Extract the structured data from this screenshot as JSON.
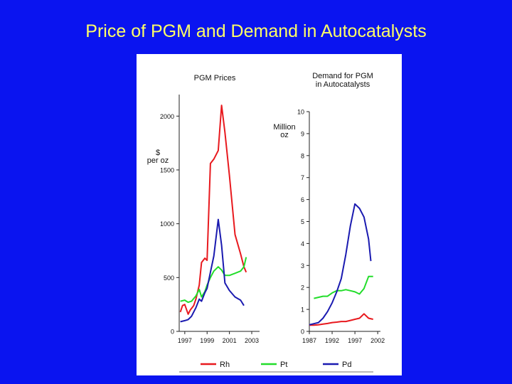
{
  "slide": {
    "title": "Price of PGM and Demand in Autocatalysts"
  },
  "colors": {
    "background": "#0a14f0",
    "title": "#ffff66",
    "rh": "#e8191e",
    "pt": "#22dd2a",
    "pd": "#1a1ab0"
  },
  "legend": [
    {
      "key": "rh",
      "label": "Rh",
      "color": "#e8191e"
    },
    {
      "key": "pt",
      "label": "Pt",
      "color": "#22dd2a"
    },
    {
      "key": "pd",
      "label": "Pd",
      "color": "#1a1ab0"
    }
  ],
  "chart_data": [
    {
      "type": "line",
      "title": "PGM Prices",
      "ylabel": "$ per oz",
      "xlim": [
        1996.5,
        2003.7
      ],
      "ylim": [
        0,
        2200
      ],
      "xticks": [
        1997,
        1999,
        2001,
        2003
      ],
      "xtick_labels": [
        "1997",
        "1999",
        "2001",
        "2003"
      ],
      "yticks": [
        0,
        500,
        1000,
        1500,
        2000
      ],
      "ytick_labels": [
        "0",
        "500",
        "1000",
        "1500",
        "2000"
      ],
      "series": [
        {
          "name": "Rh",
          "color": "#e8191e",
          "points": [
            [
              1996.6,
              180
            ],
            [
              1996.8,
              240
            ],
            [
              1997.0,
              250
            ],
            [
              1997.3,
              160
            ],
            [
              1997.5,
              200
            ],
            [
              1997.8,
              240
            ],
            [
              1998.0,
              300
            ],
            [
              1998.3,
              430
            ],
            [
              1998.5,
              640
            ],
            [
              1998.8,
              680
            ],
            [
              1999.0,
              660
            ],
            [
              1999.3,
              1560
            ],
            [
              1999.6,
              1600
            ],
            [
              2000.0,
              1680
            ],
            [
              2000.3,
              2100
            ],
            [
              2000.6,
              1850
            ],
            [
              2001.0,
              1450
            ],
            [
              2001.5,
              900
            ],
            [
              2002.0,
              720
            ],
            [
              2002.3,
              600
            ],
            [
              2002.5,
              550
            ]
          ]
        },
        {
          "name": "Pt",
          "color": "#22dd2a",
          "points": [
            [
              1996.6,
              280
            ],
            [
              1997.0,
              290
            ],
            [
              1997.3,
              270
            ],
            [
              1997.6,
              280
            ],
            [
              1998.0,
              330
            ],
            [
              1998.3,
              390
            ],
            [
              1998.5,
              320
            ],
            [
              1998.8,
              370
            ],
            [
              1999.0,
              430
            ],
            [
              1999.3,
              500
            ],
            [
              1999.6,
              560
            ],
            [
              2000.0,
              600
            ],
            [
              2000.3,
              570
            ],
            [
              2000.6,
              520
            ],
            [
              2001.0,
              520
            ],
            [
              2001.5,
              540
            ],
            [
              2002.0,
              560
            ],
            [
              2002.3,
              600
            ],
            [
              2002.5,
              690
            ]
          ]
        },
        {
          "name": "Pd",
          "color": "#1a1ab0",
          "points": [
            [
              1996.6,
              90
            ],
            [
              1997.0,
              100
            ],
            [
              1997.3,
              110
            ],
            [
              1997.6,
              140
            ],
            [
              1998.0,
              220
            ],
            [
              1998.3,
              300
            ],
            [
              1998.5,
              280
            ],
            [
              1998.8,
              360
            ],
            [
              1999.0,
              400
            ],
            [
              1999.3,
              550
            ],
            [
              1999.6,
              700
            ],
            [
              2000.0,
              1040
            ],
            [
              2000.3,
              800
            ],
            [
              2000.6,
              450
            ],
            [
              2001.0,
              380
            ],
            [
              2001.5,
              320
            ],
            [
              2002.0,
              290
            ],
            [
              2002.3,
              240
            ]
          ]
        }
      ]
    },
    {
      "type": "line",
      "title": "Demand for PGM in Autocatalysts",
      "ylabel": "Million oz",
      "xlim": [
        1987,
        2002.6
      ],
      "ylim": [
        0,
        10
      ],
      "xticks": [
        1987,
        1992,
        1997,
        2002
      ],
      "xtick_labels": [
        "1987",
        "1992",
        "1997",
        "2002"
      ],
      "yticks": [
        0,
        1,
        2,
        3,
        4,
        5,
        6,
        7,
        8,
        9,
        10
      ],
      "ytick_labels": [
        "0",
        "1",
        "2",
        "3",
        "4",
        "5",
        "6",
        "7",
        "8",
        "9",
        "10"
      ],
      "series": [
        {
          "name": "Rh",
          "color": "#e8191e",
          "points": [
            [
              1987,
              0.28
            ],
            [
              1988,
              0.28
            ],
            [
              1989,
              0.3
            ],
            [
              1990,
              0.33
            ],
            [
              1991,
              0.36
            ],
            [
              1992,
              0.4
            ],
            [
              1993,
              0.42
            ],
            [
              1994,
              0.45
            ],
            [
              1995,
              0.45
            ],
            [
              1996,
              0.5
            ],
            [
              1997,
              0.55
            ],
            [
              1998,
              0.6
            ],
            [
              1999,
              0.8
            ],
            [
              2000,
              0.6
            ],
            [
              2001,
              0.55
            ]
          ]
        },
        {
          "name": "Pt",
          "color": "#22dd2a",
          "points": [
            [
              1988,
              1.5
            ],
            [
              1989,
              1.55
            ],
            [
              1990,
              1.6
            ],
            [
              1991,
              1.6
            ],
            [
              1992,
              1.75
            ],
            [
              1993,
              1.85
            ],
            [
              1994,
              1.85
            ],
            [
              1995,
              1.9
            ],
            [
              1996,
              1.85
            ],
            [
              1997,
              1.8
            ],
            [
              1998,
              1.7
            ],
            [
              1999,
              1.95
            ],
            [
              2000,
              2.5
            ],
            [
              2001,
              2.5
            ]
          ]
        },
        {
          "name": "Pd",
          "color": "#1a1ab0",
          "points": [
            [
              1987,
              0.3
            ],
            [
              1988,
              0.35
            ],
            [
              1989,
              0.4
            ],
            [
              1990,
              0.6
            ],
            [
              1991,
              0.9
            ],
            [
              1992,
              1.3
            ],
            [
              1993,
              1.8
            ],
            [
              1994,
              2.4
            ],
            [
              1995,
              3.5
            ],
            [
              1996,
              4.8
            ],
            [
              1997,
              5.8
            ],
            [
              1998,
              5.6
            ],
            [
              1999,
              5.2
            ],
            [
              2000,
              4.2
            ],
            [
              2000.5,
              3.2
            ]
          ]
        }
      ]
    }
  ]
}
